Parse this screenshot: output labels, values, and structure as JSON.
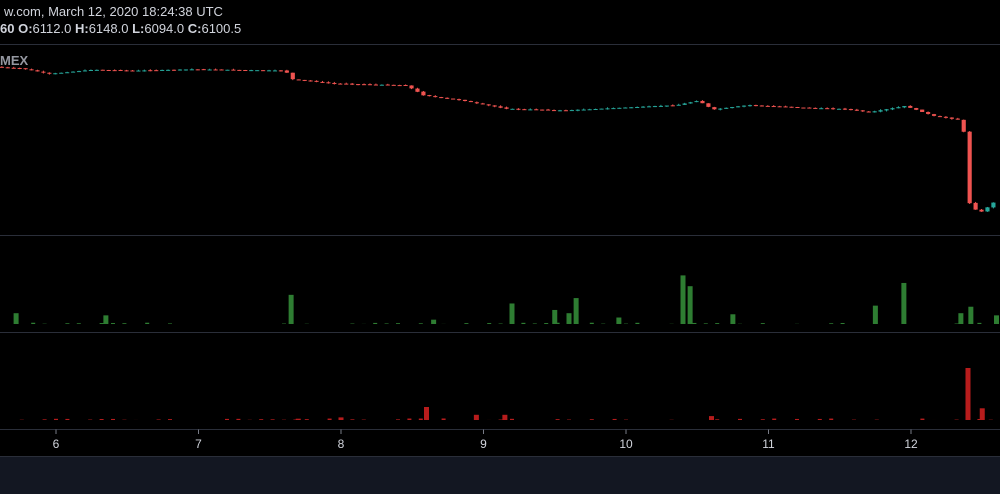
{
  "header": {
    "source_line": "w.com, March 12, 2020 18:24:38 UTC",
    "interval": "60",
    "o_label": "O:",
    "o_value": "6112.0",
    "h_label": "H:",
    "h_value": "6148.0",
    "l_label": "L:",
    "l_value": "6094.0",
    "c_label": "C:",
    "c_value": "6100.5"
  },
  "watermark": "MEX",
  "colors": {
    "up": "#26a69a",
    "down": "#ef5350",
    "buy_volume": "#2e7d32",
    "sell_volume": "#b71c1c",
    "grid": "#2a2e39",
    "background": "#000000",
    "footer": "#131722"
  },
  "chart_data": {
    "type": "candlestick",
    "x_ticks": [
      "6",
      "7",
      "8",
      "9",
      "10",
      "11",
      "12"
    ],
    "price_anchors": [
      [
        5.6,
        8020
      ],
      [
        5.8,
        8000
      ],
      [
        6.0,
        7940
      ],
      [
        6.3,
        7985
      ],
      [
        6.6,
        7975
      ],
      [
        7.0,
        7990
      ],
      [
        7.65,
        7975
      ],
      [
        7.7,
        7880
      ],
      [
        8.0,
        7830
      ],
      [
        8.5,
        7810
      ],
      [
        8.62,
        7700
      ],
      [
        8.9,
        7640
      ],
      [
        9.2,
        7550
      ],
      [
        9.6,
        7530
      ],
      [
        10.0,
        7560
      ],
      [
        10.4,
        7590
      ],
      [
        10.55,
        7640
      ],
      [
        10.65,
        7540
      ],
      [
        10.9,
        7590
      ],
      [
        11.3,
        7560
      ],
      [
        11.6,
        7545
      ],
      [
        11.75,
        7510
      ],
      [
        12.0,
        7580
      ],
      [
        12.2,
        7470
      ],
      [
        12.4,
        7420
      ],
      [
        12.42,
        7200
      ],
      [
        12.45,
        6500
      ],
      [
        12.52,
        6380
      ],
      [
        12.58,
        6450
      ],
      [
        12.62,
        6500
      ]
    ],
    "price_ylim": [
      6250,
      8150
    ],
    "buy_volume_peaks": [
      [
        5.72,
        1.0
      ],
      [
        6.35,
        0.8
      ],
      [
        7.65,
        2.7
      ],
      [
        8.65,
        0.4
      ],
      [
        9.2,
        1.9
      ],
      [
        9.5,
        1.3
      ],
      [
        9.6,
        1.0
      ],
      [
        9.65,
        2.4
      ],
      [
        9.95,
        0.6
      ],
      [
        10.4,
        4.5
      ],
      [
        10.45,
        3.5
      ],
      [
        10.75,
        0.9
      ],
      [
        11.75,
        1.7
      ],
      [
        11.95,
        3.8
      ],
      [
        12.35,
        1.0
      ],
      [
        12.42,
        1.6
      ],
      [
        12.6,
        0.8
      ]
    ],
    "sell_volume_peaks": [
      [
        7.7,
        0.1
      ],
      [
        8.0,
        0.2
      ],
      [
        8.6,
        1.0
      ],
      [
        8.95,
        0.4
      ],
      [
        9.15,
        0.4
      ],
      [
        10.6,
        0.3
      ],
      [
        12.4,
        4.0
      ],
      [
        12.5,
        0.9
      ]
    ],
    "volume_ylim": [
      0,
      5
    ]
  }
}
